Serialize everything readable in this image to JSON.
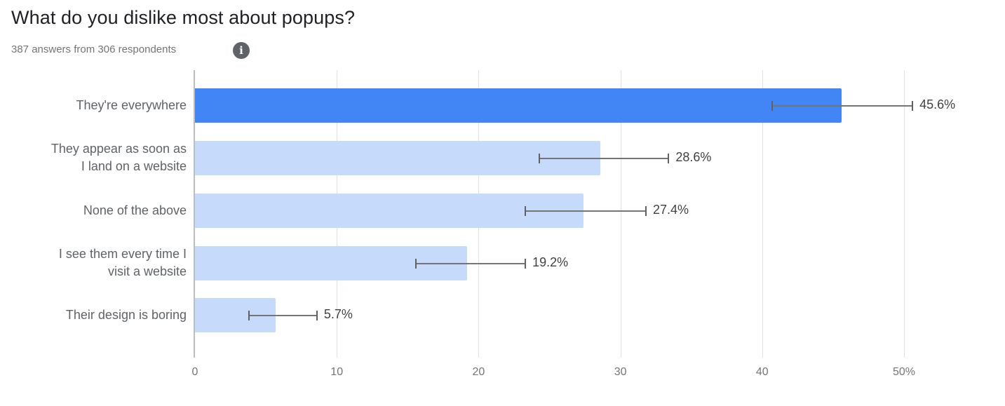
{
  "header": {
    "title": "What do you dislike most about popups?",
    "subtitle": "387 answers from 306 respondents",
    "info_icon": "info-icon"
  },
  "colors": {
    "highlight_bar": "#4285f4",
    "bar": "#c6dafc",
    "error_bar": "#757575",
    "grid": "#e0e0e0"
  },
  "chart_data": {
    "type": "bar",
    "orientation": "horizontal",
    "title": "What do you dislike most about popups?",
    "subtitle": "387 answers from 306 respondents",
    "categories": [
      "They're everywhere",
      "They appear as soon as I land on a website",
      "None of the above",
      "I see them every time I visit a website",
      "Their design is boring"
    ],
    "category_lines": [
      [
        "They're everywhere"
      ],
      [
        "They appear as soon as",
        "I land on a website"
      ],
      [
        "None of the above"
      ],
      [
        "I see them every time I",
        "visit a website"
      ],
      [
        "Their design is boring"
      ]
    ],
    "values": [
      45.6,
      28.6,
      27.4,
      19.2,
      5.7
    ],
    "value_labels": [
      "45.6%",
      "28.6%",
      "27.4%",
      "19.2%",
      "5.7%"
    ],
    "error_bars": [
      [
        40.7,
        50.6
      ],
      [
        24.3,
        33.4
      ],
      [
        23.3,
        31.8
      ],
      [
        15.6,
        23.3
      ],
      [
        3.8,
        8.6
      ]
    ],
    "highlighted_index": 0,
    "xlabel": "",
    "ylabel": "",
    "xlim": [
      0,
      50
    ],
    "xticks": [
      0,
      10,
      20,
      30,
      40,
      50
    ],
    "xtick_labels": [
      "0",
      "10",
      "20",
      "30",
      "40",
      "50%"
    ],
    "grid": true,
    "legend": "none"
  }
}
